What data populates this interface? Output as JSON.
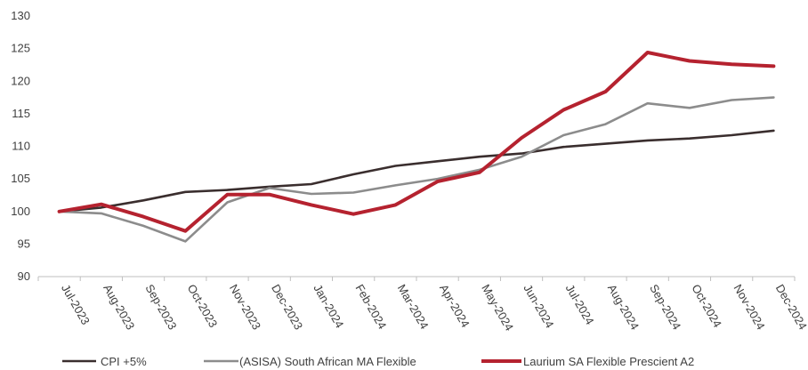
{
  "chart_data": {
    "type": "line",
    "title": "",
    "xlabel": "",
    "ylabel": "",
    "ylim": [
      90,
      130
    ],
    "yticks": [
      90,
      95,
      100,
      105,
      110,
      115,
      120,
      125,
      130
    ],
    "grid": false,
    "legend_position": "bottom",
    "categories": [
      "Jul-2023",
      "Aug-2023",
      "Sep-2023",
      "Oct-2023",
      "Nov-2023",
      "Dec-2023",
      "Jan-2024",
      "Feb-2024",
      "Mar-2024",
      "Apr-2024",
      "May-2024",
      "Jun-2024",
      "Jul-2024",
      "Aug-2024",
      "Sep-2024",
      "Oct-2024",
      "Nov-2024",
      "Dec-2024"
    ],
    "series": [
      {
        "name": "CPI +5%",
        "color": "#3a2e2e",
        "values": [
          100,
          100.6,
          101.7,
          103.0,
          103.3,
          103.8,
          104.2,
          105.7,
          107.0,
          107.7,
          108.4,
          108.9,
          109.9,
          110.4,
          110.9,
          111.2,
          111.7,
          112.4
        ]
      },
      {
        "name": "(ASISA) South African MA Flexible",
        "color": "#8c8c8c",
        "values": [
          100,
          99.7,
          97.8,
          95.4,
          101.4,
          103.6,
          102.7,
          102.9,
          104.0,
          105.0,
          106.4,
          108.4,
          111.7,
          113.4,
          116.6,
          115.9,
          117.1,
          117.5
        ]
      },
      {
        "name": "Laurium SA Flexible Prescient A2",
        "color": "#b5222f",
        "values": [
          100,
          101.1,
          99.2,
          97.0,
          102.6,
          102.6,
          101.0,
          99.6,
          101.0,
          104.6,
          106.0,
          111.3,
          115.6,
          118.4,
          124.4,
          123.1,
          122.6,
          122.3
        ]
      }
    ]
  }
}
